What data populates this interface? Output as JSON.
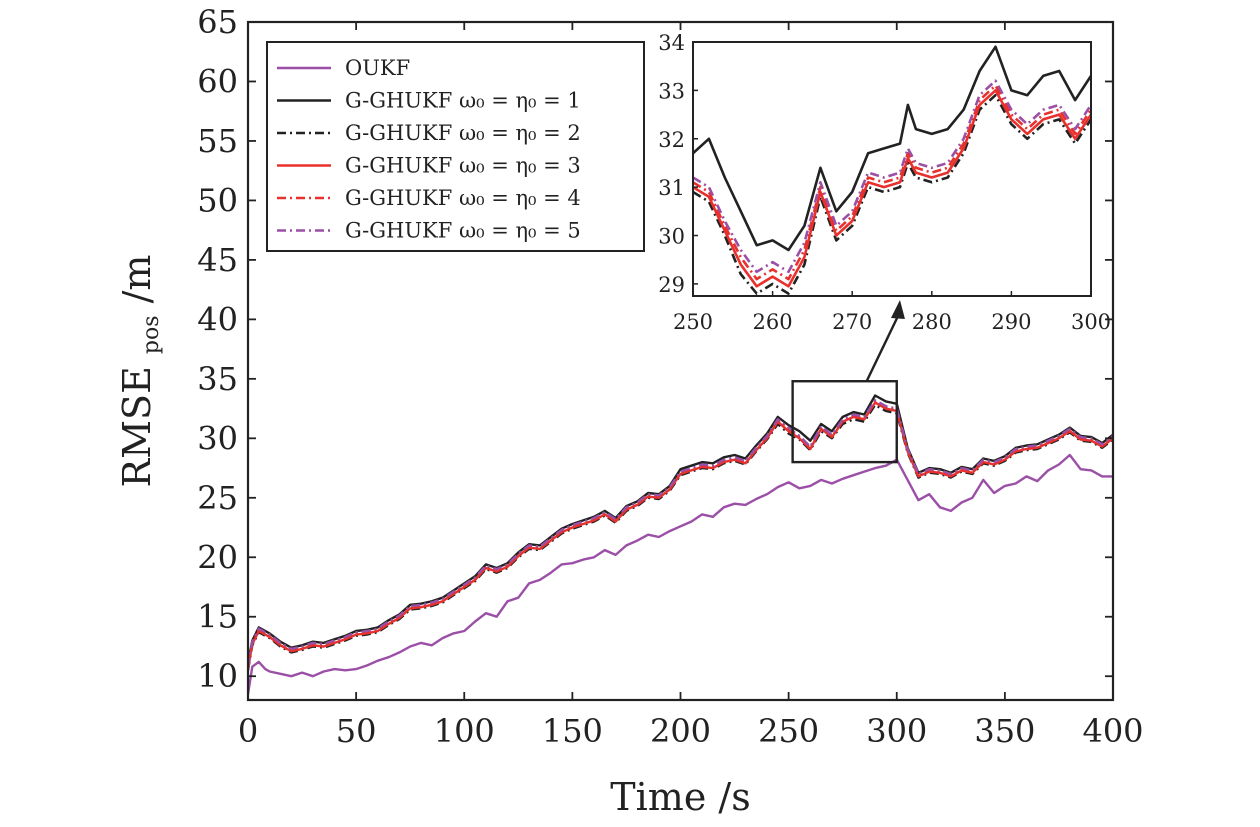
{
  "chart_data": {
    "type": "line",
    "xlabel": "Time /s",
    "ylabel": "RMSE",
    "ylabel_subscript": "pos",
    "ylabel_unit": " /m",
    "xlim": [
      0,
      400
    ],
    "ylim": [
      8,
      65
    ],
    "xticks": [
      0,
      50,
      100,
      150,
      200,
      250,
      300,
      350,
      400
    ],
    "yticks": [
      10,
      15,
      20,
      25,
      30,
      35,
      40,
      45,
      50,
      55,
      60,
      65
    ],
    "legend_position": "top-left",
    "grid": false,
    "series": [
      {
        "name": "OUKF",
        "color": "#9b4fa6",
        "dash": "solid",
        "x": [
          0,
          2,
          5,
          8,
          10,
          15,
          20,
          25,
          30,
          35,
          40,
          45,
          50,
          55,
          60,
          65,
          70,
          75,
          80,
          85,
          90,
          95,
          100,
          105,
          110,
          115,
          120,
          125,
          130,
          135,
          140,
          145,
          150,
          155,
          160,
          165,
          170,
          175,
          180,
          185,
          190,
          195,
          200,
          205,
          210,
          215,
          220,
          225,
          230,
          235,
          240,
          245,
          250,
          255,
          260,
          265,
          270,
          275,
          280,
          285,
          290,
          295,
          300,
          305,
          310,
          315,
          320,
          325,
          330,
          335,
          340,
          345,
          350,
          355,
          360,
          365,
          370,
          375,
          380,
          385,
          390,
          395,
          400
        ],
        "y": [
          8.5,
          10.8,
          11.2,
          10.6,
          10.4,
          10.2,
          10.0,
          10.3,
          10.0,
          10.4,
          10.6,
          10.5,
          10.6,
          10.9,
          11.3,
          11.6,
          12.0,
          12.5,
          12.8,
          12.6,
          13.2,
          13.6,
          13.8,
          14.6,
          15.3,
          15.0,
          16.3,
          16.6,
          17.8,
          18.1,
          18.7,
          19.4,
          19.5,
          19.8,
          20.0,
          20.6,
          20.2,
          21.0,
          21.4,
          21.9,
          21.7,
          22.2,
          22.6,
          23.0,
          23.6,
          23.4,
          24.2,
          24.5,
          24.4,
          24.9,
          25.3,
          25.9,
          26.3,
          25.8,
          26.0,
          26.5,
          26.2,
          26.6,
          26.9,
          27.2,
          27.5,
          27.7,
          28.2,
          26.5,
          24.8,
          25.3,
          24.2,
          23.9,
          24.6,
          25.0,
          26.5,
          25.4,
          26.0,
          26.2,
          26.8,
          26.4,
          27.3,
          27.8,
          28.6,
          27.4,
          27.3,
          26.8,
          26.8
        ]
      },
      {
        "name": "G-GHUKF ω₀ = η₀ = 1",
        "color": "#222222",
        "dash": "solid",
        "x": [
          0,
          2,
          5,
          8,
          10,
          15,
          20,
          25,
          30,
          35,
          40,
          45,
          50,
          55,
          60,
          65,
          70,
          75,
          80,
          85,
          90,
          95,
          100,
          105,
          110,
          115,
          120,
          125,
          130,
          135,
          140,
          145,
          150,
          155,
          160,
          165,
          170,
          175,
          180,
          185,
          190,
          195,
          200,
          205,
          210,
          215,
          220,
          225,
          230,
          235,
          240,
          245,
          250,
          255,
          260,
          265,
          270,
          275,
          280,
          285,
          290,
          295,
          300,
          305,
          310,
          315,
          320,
          325,
          330,
          335,
          340,
          345,
          350,
          355,
          360,
          365,
          370,
          375,
          380,
          385,
          390,
          395,
          400
        ],
        "y": [
          11.0,
          13.0,
          14.1,
          13.8,
          13.6,
          12.9,
          12.4,
          12.6,
          12.9,
          12.8,
          13.1,
          13.4,
          13.8,
          13.9,
          14.1,
          14.7,
          15.2,
          16.0,
          16.1,
          16.3,
          16.6,
          17.2,
          17.8,
          18.4,
          19.4,
          19.1,
          19.5,
          20.4,
          21.1,
          21.0,
          21.7,
          22.4,
          22.8,
          23.1,
          23.4,
          23.9,
          23.3,
          24.3,
          24.7,
          25.4,
          25.3,
          26.0,
          27.4,
          27.7,
          28.0,
          27.9,
          28.4,
          28.6,
          28.3,
          29.4,
          30.4,
          31.8,
          31.1,
          30.6,
          29.8,
          31.2,
          30.6,
          31.8,
          32.2,
          32.0,
          33.6,
          33.1,
          32.9,
          29.2,
          27.1,
          27.5,
          27.4,
          27.1,
          27.6,
          27.4,
          28.3,
          28.1,
          28.5,
          29.2,
          29.4,
          29.5,
          29.9,
          30.3,
          30.9,
          30.2,
          30.1,
          29.6,
          30.3
        ]
      },
      {
        "name": "G-GHUKF ω₀ = η₀ = 2",
        "color": "#222222",
        "dash": "dashdot",
        "x": [
          0,
          2,
          5,
          8,
          10,
          15,
          20,
          25,
          30,
          35,
          40,
          45,
          50,
          55,
          60,
          65,
          70,
          75,
          80,
          85,
          90,
          95,
          100,
          105,
          110,
          115,
          120,
          125,
          130,
          135,
          140,
          145,
          150,
          155,
          160,
          165,
          170,
          175,
          180,
          185,
          190,
          195,
          200,
          205,
          210,
          215,
          220,
          225,
          230,
          235,
          240,
          245,
          250,
          255,
          260,
          265,
          270,
          275,
          280,
          285,
          290,
          295,
          300,
          305,
          310,
          315,
          320,
          325,
          330,
          335,
          340,
          345,
          350,
          355,
          360,
          365,
          370,
          375,
          380,
          385,
          390,
          395,
          400
        ],
        "y": [
          10.5,
          12.6,
          13.7,
          13.4,
          13.2,
          12.5,
          12.0,
          12.2,
          12.5,
          12.4,
          12.7,
          13.0,
          13.4,
          13.5,
          13.7,
          14.3,
          14.8,
          15.6,
          15.7,
          15.9,
          16.2,
          16.8,
          17.4,
          18.0,
          19.0,
          18.7,
          19.1,
          20.0,
          20.7,
          20.6,
          21.3,
          22.0,
          22.4,
          22.7,
          23.0,
          23.5,
          22.9,
          23.9,
          24.3,
          25.0,
          24.9,
          25.6,
          26.9,
          27.2,
          27.5,
          27.4,
          27.9,
          28.1,
          27.8,
          28.9,
          29.9,
          31.2,
          30.4,
          29.9,
          29.0,
          30.6,
          30.0,
          31.2,
          31.6,
          31.4,
          32.8,
          32.3,
          32.1,
          28.8,
          26.7,
          27.1,
          27.0,
          26.7,
          27.2,
          27.0,
          27.9,
          27.7,
          28.1,
          28.8,
          29.0,
          29.1,
          29.5,
          29.9,
          30.5,
          29.8,
          29.7,
          29.2,
          29.9
        ]
      },
      {
        "name": "G-GHUKF ω₀ = η₀ = 3",
        "color": "#e8302c",
        "dash": "solid",
        "x": [
          0,
          2,
          5,
          8,
          10,
          15,
          20,
          25,
          30,
          35,
          40,
          45,
          50,
          55,
          60,
          65,
          70,
          75,
          80,
          85,
          90,
          95,
          100,
          105,
          110,
          115,
          120,
          125,
          130,
          135,
          140,
          145,
          150,
          155,
          160,
          165,
          170,
          175,
          180,
          185,
          190,
          195,
          200,
          205,
          210,
          215,
          220,
          225,
          230,
          235,
          240,
          245,
          250,
          255,
          260,
          265,
          270,
          275,
          280,
          285,
          290,
          295,
          300,
          305,
          310,
          315,
          320,
          325,
          330,
          335,
          340,
          345,
          350,
          355,
          360,
          365,
          370,
          375,
          380,
          385,
          390,
          395,
          400
        ],
        "y": [
          10.6,
          12.7,
          13.8,
          13.5,
          13.3,
          12.6,
          12.1,
          12.3,
          12.6,
          12.5,
          12.8,
          13.1,
          13.5,
          13.6,
          13.8,
          14.4,
          14.9,
          15.7,
          15.8,
          16.0,
          16.3,
          16.9,
          17.5,
          18.1,
          19.1,
          18.8,
          19.2,
          20.1,
          20.8,
          20.7,
          21.4,
          22.1,
          22.5,
          22.8,
          23.1,
          23.6,
          23.0,
          24.0,
          24.4,
          25.1,
          25.0,
          25.7,
          27.0,
          27.3,
          27.6,
          27.5,
          28.0,
          28.2,
          27.9,
          29.0,
          30.0,
          31.4,
          30.6,
          30.0,
          29.1,
          30.8,
          30.1,
          31.4,
          31.8,
          31.6,
          33.0,
          32.5,
          32.3,
          28.9,
          26.8,
          27.2,
          27.1,
          26.8,
          27.3,
          27.1,
          28.0,
          27.8,
          28.2,
          28.9,
          29.1,
          29.2,
          29.6,
          30.0,
          30.6,
          29.9,
          29.8,
          29.3,
          30.0
        ]
      },
      {
        "name": "G-GHUKF ω₀ = η₀ = 4",
        "color": "#e8302c",
        "dash": "dashdot",
        "x": [
          0,
          2,
          5,
          8,
          10,
          15,
          20,
          25,
          30,
          35,
          40,
          45,
          50,
          55,
          60,
          65,
          70,
          75,
          80,
          85,
          90,
          95,
          100,
          105,
          110,
          115,
          120,
          125,
          130,
          135,
          140,
          145,
          150,
          155,
          160,
          165,
          170,
          175,
          180,
          185,
          190,
          195,
          200,
          205,
          210,
          215,
          220,
          225,
          230,
          235,
          240,
          245,
          250,
          255,
          260,
          265,
          270,
          275,
          280,
          285,
          290,
          295,
          300,
          305,
          310,
          315,
          320,
          325,
          330,
          335,
          340,
          345,
          350,
          355,
          360,
          365,
          370,
          375,
          380,
          385,
          390,
          395,
          400
        ],
        "y": [
          10.7,
          12.8,
          13.9,
          13.6,
          13.4,
          12.7,
          12.2,
          12.4,
          12.7,
          12.6,
          12.9,
          13.2,
          13.6,
          13.7,
          13.9,
          14.5,
          15.0,
          15.8,
          15.9,
          16.1,
          16.4,
          17.0,
          17.6,
          18.2,
          19.2,
          18.9,
          19.3,
          20.2,
          20.9,
          20.8,
          21.5,
          22.2,
          22.6,
          22.9,
          23.2,
          23.7,
          23.1,
          24.1,
          24.5,
          25.2,
          25.1,
          25.8,
          27.1,
          27.4,
          27.7,
          27.6,
          28.1,
          28.3,
          28.0,
          29.1,
          30.1,
          31.5,
          30.8,
          30.1,
          29.2,
          30.9,
          30.2,
          31.5,
          31.9,
          31.7,
          33.1,
          32.6,
          32.4,
          29.0,
          26.9,
          27.3,
          27.2,
          26.9,
          27.4,
          27.2,
          28.1,
          27.9,
          28.3,
          29.0,
          29.2,
          29.3,
          29.7,
          30.1,
          30.7,
          30.0,
          29.9,
          29.4,
          30.1
        ]
      },
      {
        "name": "G-GHUKF ω₀ = η₀ = 5",
        "color": "#9b4fa6",
        "dash": "dashdot",
        "x": [
          0,
          2,
          5,
          8,
          10,
          15,
          20,
          25,
          30,
          35,
          40,
          45,
          50,
          55,
          60,
          65,
          70,
          75,
          80,
          85,
          90,
          95,
          100,
          105,
          110,
          115,
          120,
          125,
          130,
          135,
          140,
          145,
          150,
          155,
          160,
          165,
          170,
          175,
          180,
          185,
          190,
          195,
          200,
          205,
          210,
          215,
          220,
          225,
          230,
          235,
          240,
          245,
          250,
          255,
          260,
          265,
          270,
          275,
          280,
          285,
          290,
          295,
          300,
          305,
          310,
          315,
          320,
          325,
          330,
          335,
          340,
          345,
          350,
          355,
          360,
          365,
          370,
          375,
          380,
          385,
          390,
          395,
          400
        ],
        "y": [
          10.8,
          12.9,
          14.0,
          13.7,
          13.5,
          12.8,
          12.3,
          12.5,
          12.8,
          12.7,
          13.0,
          13.3,
          13.7,
          13.8,
          14.0,
          14.6,
          15.1,
          15.9,
          16.0,
          16.2,
          16.5,
          17.1,
          17.7,
          18.3,
          19.3,
          19.0,
          19.4,
          20.3,
          21.0,
          20.9,
          21.6,
          22.3,
          22.7,
          23.0,
          23.3,
          23.8,
          23.2,
          24.2,
          24.6,
          25.3,
          25.2,
          25.9,
          27.2,
          27.5,
          27.8,
          27.7,
          28.2,
          28.4,
          28.1,
          29.2,
          30.2,
          31.6,
          30.9,
          30.2,
          29.3,
          31.0,
          30.3,
          31.6,
          32.0,
          31.8,
          33.2,
          32.7,
          32.5,
          29.1,
          27.0,
          27.4,
          27.3,
          27.0,
          27.5,
          27.3,
          28.2,
          28.0,
          28.4,
          29.1,
          29.3,
          29.4,
          29.8,
          30.2,
          30.8,
          30.1,
          30.0,
          29.5,
          30.2
        ]
      }
    ],
    "inset": {
      "xlim": [
        250,
        300
      ],
      "ylim": [
        28.75,
        34
      ],
      "xticks": [
        250,
        260,
        270,
        280,
        290,
        300
      ],
      "yticks": [
        29,
        30,
        31,
        32,
        33,
        34
      ],
      "x": [
        250,
        252,
        254,
        256,
        258,
        260,
        262,
        264,
        266,
        268,
        270,
        272,
        274,
        276,
        277,
        278,
        280,
        282,
        284,
        286,
        288,
        290,
        292,
        294,
        296,
        298,
        300
      ],
      "series_y": [
        [
          31.7,
          32.0,
          31.2,
          30.5,
          29.8,
          29.9,
          29.7,
          30.2,
          31.4,
          30.5,
          30.9,
          31.7,
          31.8,
          31.9,
          32.7,
          32.2,
          32.1,
          32.2,
          32.6,
          33.4,
          33.9,
          33.0,
          32.9,
          33.3,
          33.4,
          32.8,
          33.3
        ],
        [
          30.9,
          30.7,
          30.0,
          29.2,
          28.8,
          29.0,
          28.8,
          29.4,
          30.8,
          29.9,
          30.2,
          31.0,
          30.9,
          31.0,
          31.5,
          31.2,
          31.1,
          31.2,
          31.7,
          32.6,
          32.9,
          32.3,
          32.0,
          32.3,
          32.4,
          31.9,
          32.4
        ],
        [
          31.0,
          30.8,
          30.1,
          29.4,
          28.95,
          29.15,
          28.95,
          29.55,
          30.9,
          30.0,
          30.3,
          31.1,
          31.0,
          31.1,
          31.6,
          31.3,
          31.2,
          31.3,
          31.8,
          32.7,
          33.0,
          32.4,
          32.1,
          32.4,
          32.5,
          32.0,
          32.5
        ],
        [
          31.1,
          30.9,
          30.2,
          29.55,
          29.1,
          29.3,
          29.1,
          29.7,
          31.0,
          30.1,
          30.4,
          31.2,
          31.1,
          31.2,
          31.7,
          31.4,
          31.3,
          31.4,
          31.9,
          32.8,
          33.1,
          32.5,
          32.2,
          32.5,
          32.6,
          32.1,
          32.6
        ],
        [
          31.2,
          31.0,
          30.3,
          29.7,
          29.25,
          29.45,
          29.25,
          29.85,
          31.1,
          30.2,
          30.5,
          31.3,
          31.2,
          31.3,
          31.8,
          31.5,
          31.4,
          31.5,
          32.0,
          32.9,
          33.2,
          32.6,
          32.3,
          32.6,
          32.7,
          32.2,
          32.7
        ]
      ]
    }
  }
}
